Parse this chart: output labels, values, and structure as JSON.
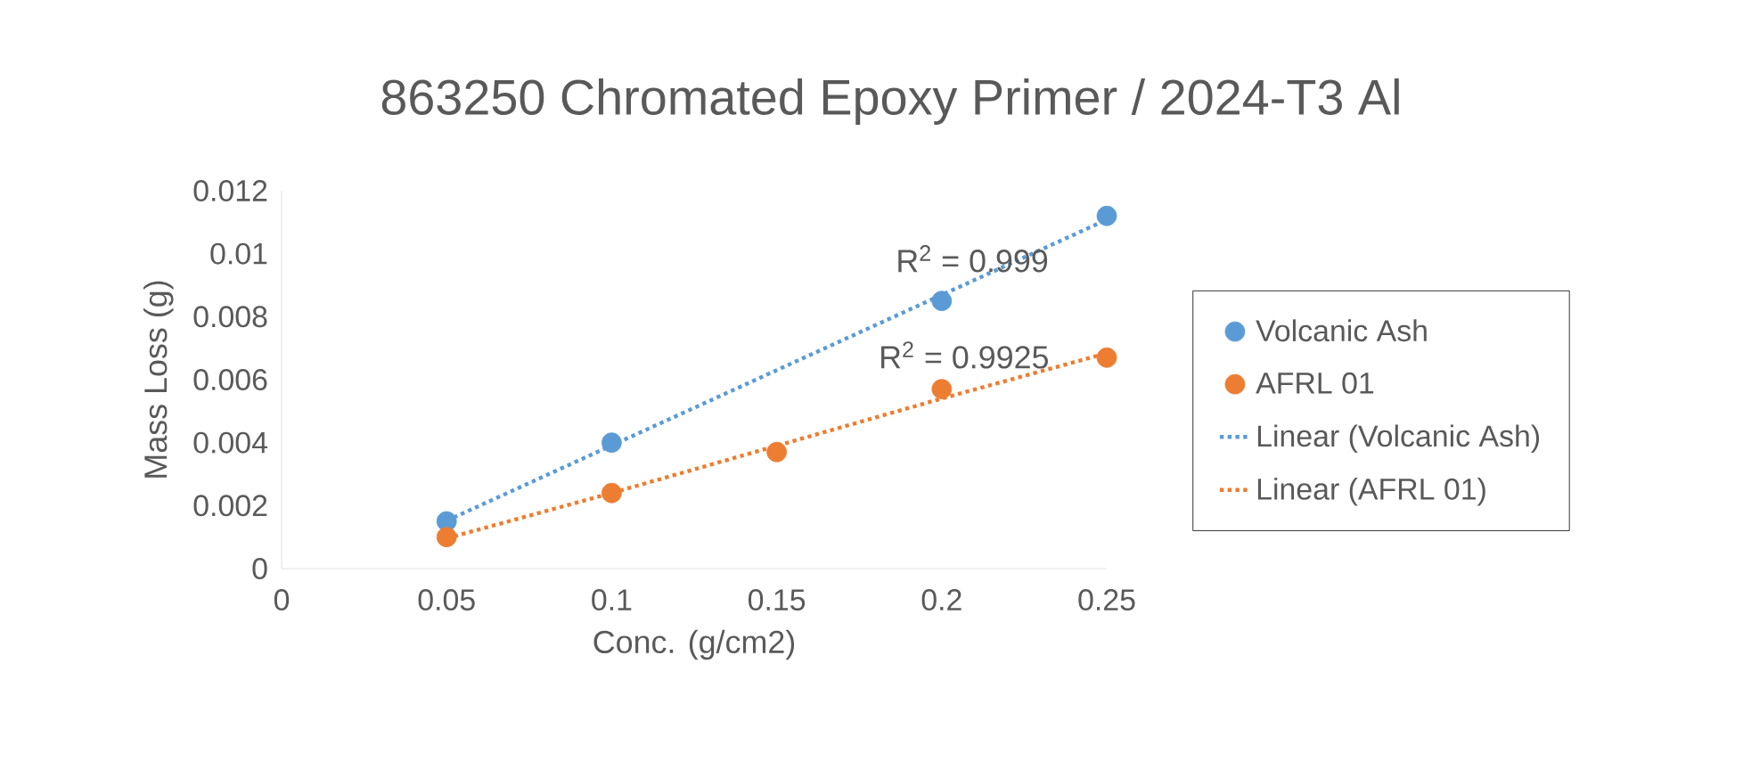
{
  "chart_data": {
    "type": "scatter",
    "title": "863250 Chromated Epoxy Primer / 2024-T3 Al",
    "xlabel": "Conc. (g/cm2)",
    "ylabel": "Mass Loss (g)",
    "x": [
      0.05,
      0.1,
      0.15,
      0.2,
      0.25
    ],
    "series": [
      {
        "name": "Volcanic Ash",
        "color": "#5b9bd5",
        "marker": "circle",
        "values": [
          0.0015,
          0.004,
          null,
          0.0085,
          0.0112
        ]
      },
      {
        "name": "AFRL 01",
        "color": "#ed7d31",
        "marker": "circle",
        "values": [
          0.001,
          0.0024,
          0.0037,
          0.0057,
          0.0067
        ]
      },
      {
        "name": "Linear (Volcanic Ash)",
        "type": "line",
        "color": "#5b9bd5",
        "line_style": "dotted",
        "marker": "none",
        "values": [
          0.00152,
          0.00391,
          0.0063,
          0.00869,
          0.01108
        ]
      },
      {
        "name": "Linear (AFRL 01)",
        "type": "line",
        "color": "#ed7d31",
        "line_style": "dotted",
        "marker": "none",
        "values": [
          0.00096,
          0.0024,
          0.0039,
          0.0054,
          0.00684
        ]
      }
    ],
    "annotations": [
      "R$^{2}$ = 0.999",
      "R$^{2}$ = 0.9925"
    ],
    "xlim": [
      0,
      0.25
    ],
    "ylim": [
      0,
      0.012
    ],
    "xticks": [
      0,
      0.05,
      0.1,
      0.15,
      0.2,
      0.25
    ],
    "yticks": [
      0,
      0.002,
      0.004,
      0.006,
      0.008,
      0.01,
      0.012
    ],
    "grid": false,
    "legend": "right"
  }
}
